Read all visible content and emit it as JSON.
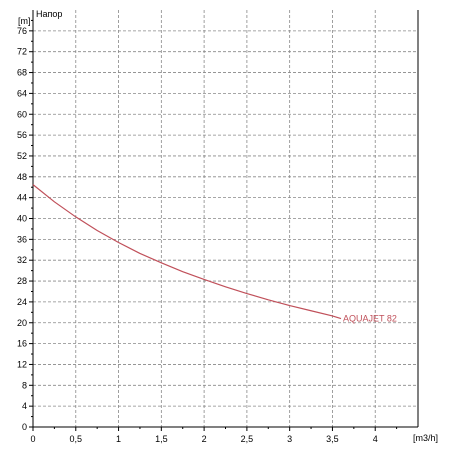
{
  "chart_data": {
    "type": "line",
    "title": "Напор",
    "xlabel": "[m3/h]",
    "ylabel": "[m]",
    "xlim": [
      0,
      4.5
    ],
    "ylim": [
      0,
      80
    ],
    "x_ticks": [
      0,
      0.5,
      1,
      1.5,
      2,
      2.5,
      3,
      3.5,
      4
    ],
    "x_tick_labels": [
      "0",
      "0,5",
      "1",
      "1,5",
      "2",
      "2,5",
      "3",
      "3,5",
      "4"
    ],
    "y_ticks": [
      0,
      4,
      8,
      12,
      16,
      20,
      24,
      28,
      32,
      36,
      40,
      44,
      48,
      52,
      56,
      60,
      64,
      68,
      72,
      76
    ],
    "y_tick_labels": [
      "0",
      "4",
      "8",
      "12",
      "16",
      "20",
      "24",
      "28",
      "32",
      "36",
      "40",
      "44",
      "48",
      "52",
      "56",
      "60",
      "64",
      "68",
      "72",
      "76"
    ],
    "grid": true,
    "series": [
      {
        "name": "AQUAJET 82",
        "color": "#c0505a",
        "x": [
          0,
          0.25,
          0.5,
          0.75,
          1,
          1.25,
          1.5,
          1.75,
          2,
          2.25,
          2.5,
          2.75,
          3,
          3.25,
          3.5,
          3.6
        ],
        "y": [
          46.5,
          43.2,
          40.3,
          37.7,
          35.4,
          33.3,
          31.5,
          29.8,
          28.3,
          26.9,
          25.6,
          24.4,
          23.3,
          22.3,
          21.3,
          20.8
        ]
      }
    ]
  }
}
